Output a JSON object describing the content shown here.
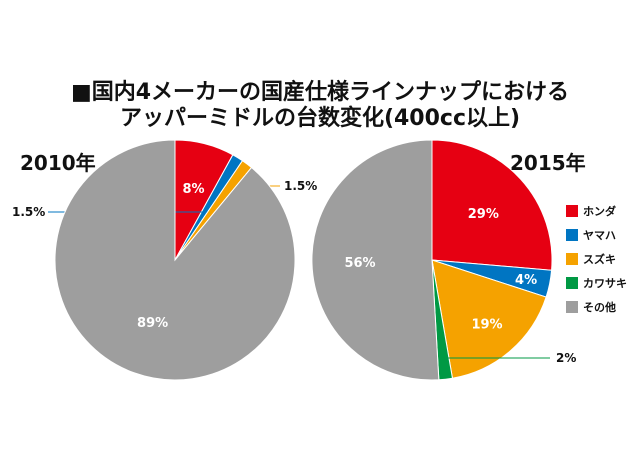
{
  "title": {
    "line1": "■国内4メーカーの国産仕様ラインナップにおける",
    "line2": "アッパーミドルの台数変化(400cc以上)"
  },
  "legend": {
    "items": [
      {
        "label": "ホンダ",
        "color": "#e60012"
      },
      {
        "label": "ヤマハ",
        "color": "#0075c2"
      },
      {
        "label": "スズキ",
        "color": "#f5a200"
      },
      {
        "label": "カワサキ",
        "color": "#009944"
      },
      {
        "label": "その他",
        "color": "#9e9e9e"
      }
    ]
  },
  "chart_data": [
    {
      "type": "pie",
      "title": "2010年",
      "slices": [
        {
          "name": "ホンダ",
          "value": 8,
          "label": "8%",
          "color": "#e60012"
        },
        {
          "name": "ヤマハ",
          "value": 1.5,
          "label": "1.5%",
          "color": "#0075c2"
        },
        {
          "name": "スズキ",
          "value": 1.5,
          "label": "1.5%",
          "color": "#f5a200"
        },
        {
          "name": "その他",
          "value": 89,
          "label": "89%",
          "color": "#9e9e9e"
        }
      ]
    },
    {
      "type": "pie",
      "title": "2015年",
      "slices": [
        {
          "name": "ホンダ",
          "value": 29,
          "label": "29%",
          "color": "#e60012"
        },
        {
          "name": "ヤマハ",
          "value": 4,
          "label": "4%",
          "color": "#0075c2"
        },
        {
          "name": "スズキ",
          "value": 19,
          "label": "19%",
          "color": "#f5a200"
        },
        {
          "name": "カワサキ",
          "value": 2,
          "label": "2%",
          "color": "#009944"
        },
        {
          "name": "その他",
          "value": 56,
          "label": "56%",
          "color": "#9e9e9e"
        }
      ]
    }
  ]
}
